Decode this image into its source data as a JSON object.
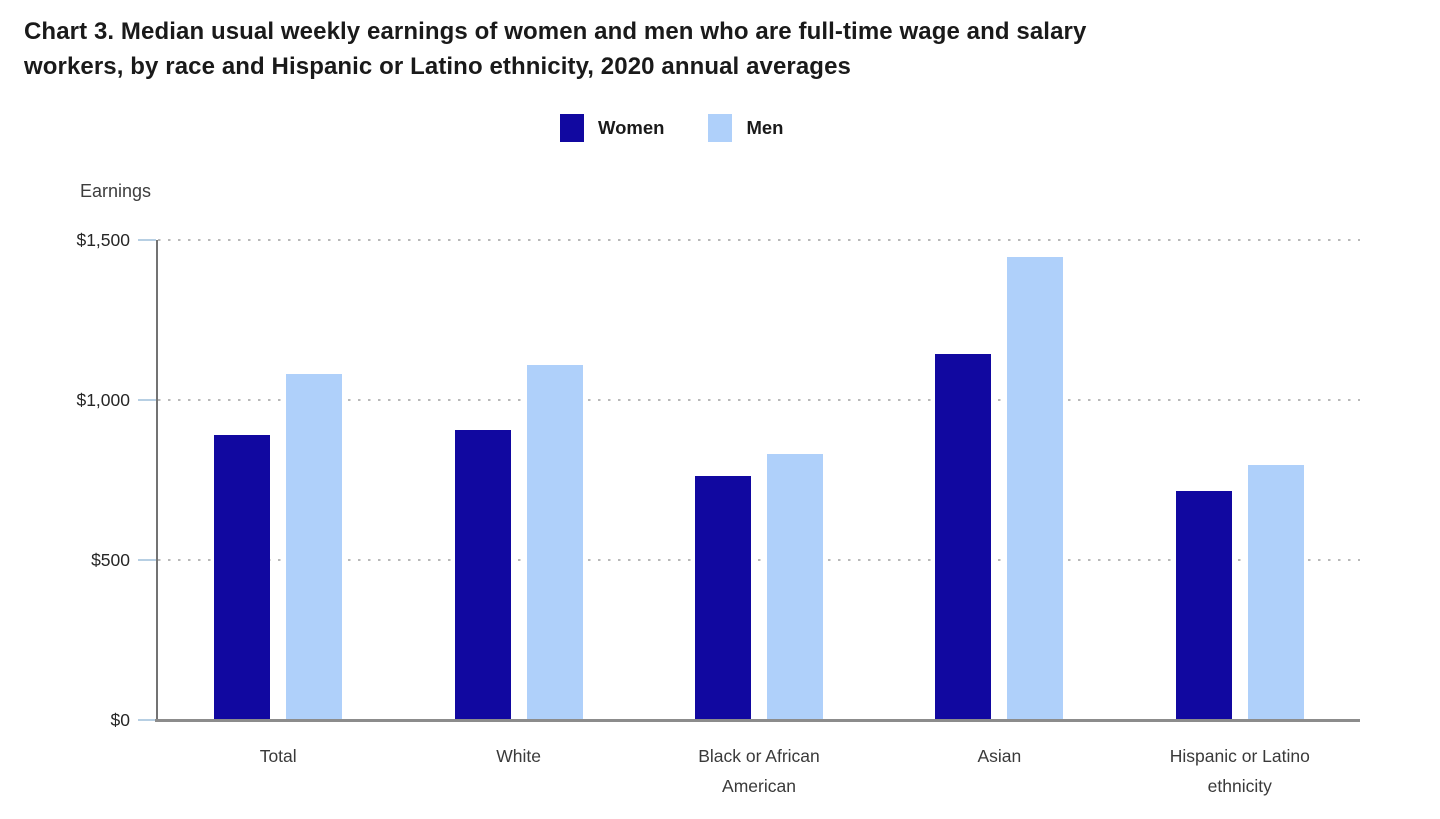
{
  "title": {
    "line1": "Chart 3. Median usual weekly earnings of women and men who are full-time wage and salary",
    "line2": "workers, by race and Hispanic or Latino ethnicity, 2020 annual averages"
  },
  "axis": {
    "y_title": "Earnings"
  },
  "chart_data": {
    "type": "bar",
    "title": "Chart 3. Median usual weekly earnings of women and men who are full-time wage and salary workers, by race and Hispanic or Latino ethnicity, 2020 annual averages",
    "ylabel": "Earnings",
    "xlabel": "",
    "ylim": [
      0,
      1500
    ],
    "yticks": [
      {
        "value": 0,
        "label": "$0"
      },
      {
        "value": 500,
        "label": "$500"
      },
      {
        "value": 1000,
        "label": "$1,000"
      },
      {
        "value": 1500,
        "label": "$1,500"
      }
    ],
    "grid": "horizontal-dotted",
    "legend_position": "top-center",
    "categories": [
      "Total",
      "White",
      "Black or African American",
      "Asian",
      "Hispanic or Latino ethnicity"
    ],
    "series": [
      {
        "name": "Women",
        "color": "#1108A0",
        "values": [
          891,
          905,
          764,
          1143,
          717
        ]
      },
      {
        "name": "Men",
        "color": "#AFD0FA",
        "values": [
          1082,
          1110,
          830,
          1447,
          797
        ]
      }
    ]
  },
  "colors": {
    "women_bar": "#1108A0",
    "men_bar": "#AFD0FA",
    "y_axis_line": "#737373",
    "x_baseline": "#8C8C8C",
    "gridline_dots": "#B8B8B8",
    "tick_mark": "#B7CFE3",
    "title_text": "#1A1A1A",
    "label_text": "#3A3A3A"
  }
}
